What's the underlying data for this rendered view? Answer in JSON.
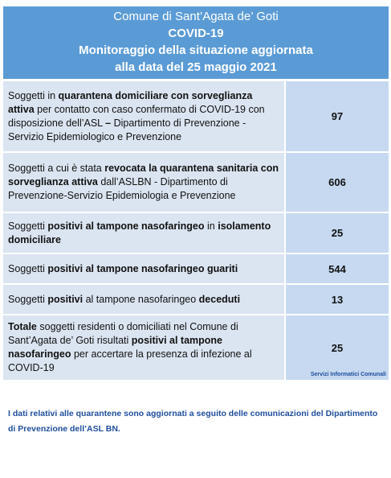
{
  "header": {
    "lines": [
      "Comune di Sant’Agata de’ Goti",
      "COVID-19",
      "Monitoraggio della situazione aggiornata",
      "alla data del 25 maggio 2021"
    ]
  },
  "table": {
    "rows": [
      {
        "label": [
          {
            "text": "Soggetti in ",
            "bold": false
          },
          {
            "text": "quarantena domiciliare con sorveglianza attiva",
            "bold": true
          },
          {
            "text": " per contatto con caso confermato di COVID-19 con disposizione dell’ASL ",
            "bold": false
          },
          {
            "text": "–",
            "bold": true
          },
          {
            "text": " Dipartimento di Prevenzione - Servizio Epidemiologico e Prevenzione",
            "bold": false
          }
        ],
        "value": 97
      },
      {
        "label": [
          {
            "text": "Soggetti a cui è stata ",
            "bold": false
          },
          {
            "text": "revocata la quarantena sanitaria con sorveglianza attiva",
            "bold": true
          },
          {
            "text": " dall’ASLBN - Dipartimento di Prevenzione-Servizio Epidemiologia e Prevenzione",
            "bold": false
          }
        ],
        "value": 606
      },
      {
        "label": [
          {
            "text": "Soggetti ",
            "bold": false
          },
          {
            "text": "positivi al tampone nasofaringeo",
            "bold": true
          },
          {
            "text": " in ",
            "bold": false
          },
          {
            "text": "isolamento domiciliare",
            "bold": true
          }
        ],
        "value": 25
      },
      {
        "label": [
          {
            "text": "Soggetti ",
            "bold": false
          },
          {
            "text": "positivi al tampone nasofaringeo guariti",
            "bold": true
          }
        ],
        "value": 544
      },
      {
        "label": [
          {
            "text": "Soggetti ",
            "bold": false
          },
          {
            "text": "positivi",
            "bold": true
          },
          {
            "text": " al tampone nasofaringeo ",
            "bold": false
          },
          {
            "text": "deceduti",
            "bold": true
          }
        ],
        "value": 13
      },
      {
        "label": [
          {
            "text": "Totale",
            "bold": true
          },
          {
            "text": " soggetti residenti o domiciliati nel Comune di Sant’Agata de’ Goti risultati ",
            "bold": false
          },
          {
            "text": "positivi al tampone nasofaringeo",
            "bold": true
          },
          {
            "text": " per accertare la presenza di infezione al COVID-19",
            "bold": false
          }
        ],
        "value": 25
      }
    ]
  },
  "credit": "Servizi Informatici Comunali",
  "note": "I dati relativi alle quarantene sono aggiornati a seguito delle comunicazioni del Dipartimento di Prevenzione dell’ASL BN."
}
